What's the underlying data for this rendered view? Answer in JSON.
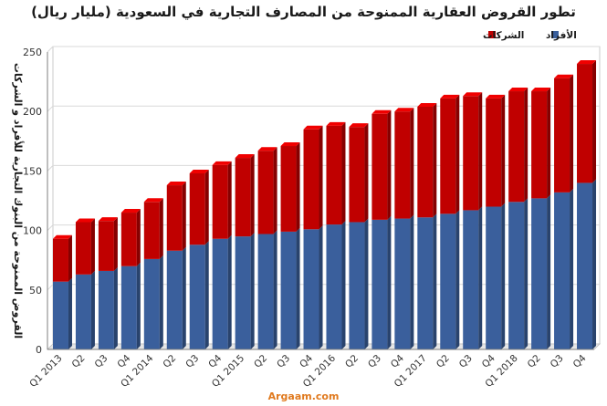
{
  "title": "تطور القروض العقارية الممنوحة من المصارف التجارية في السعودية (مليار ريال)",
  "source": "Argaam.com",
  "colors": {
    "individuals": "#3a5f9c",
    "companies": "#c00000",
    "grid": "#d9d9d9",
    "axis": "#404040"
  },
  "chart_data": {
    "type": "bar",
    "stacked": true,
    "ylabel": "القروض الممنوحة من البنوك التجارية للأفراد و الشركات",
    "ylim": [
      0,
      250
    ],
    "yticks": [
      0,
      50,
      100,
      150,
      200,
      250
    ],
    "grid": true,
    "legend_position": "top-right",
    "categories": [
      "Q1 2013",
      "Q2",
      "Q3",
      "Q4",
      "Q1 2014",
      "Q2",
      "Q3",
      "Q4",
      "Q1 2015",
      "Q2",
      "Q3",
      "Q4",
      "Q1 2016",
      "Q2",
      "Q3",
      "Q4",
      "Q1 2017",
      "Q2",
      "Q3",
      "Q4",
      "Q1 2018",
      "Q2",
      "Q3",
      "Q4"
    ],
    "series": [
      {
        "name": "الأفراد",
        "color": "#3a5f9c",
        "values": [
          57,
          63,
          66,
          70,
          76,
          83,
          88,
          93,
          95,
          97,
          99,
          101,
          105,
          107,
          109,
          110,
          111,
          114,
          117,
          120,
          124,
          127,
          132,
          140
        ]
      },
      {
        "name": "الشركات",
        "color": "#c00000",
        "values": [
          36,
          44,
          42,
          45,
          48,
          55,
          60,
          62,
          66,
          70,
          72,
          84,
          83,
          80,
          89,
          90,
          93,
          97,
          96,
          91,
          93,
          90,
          96,
          100
        ]
      }
    ]
  }
}
